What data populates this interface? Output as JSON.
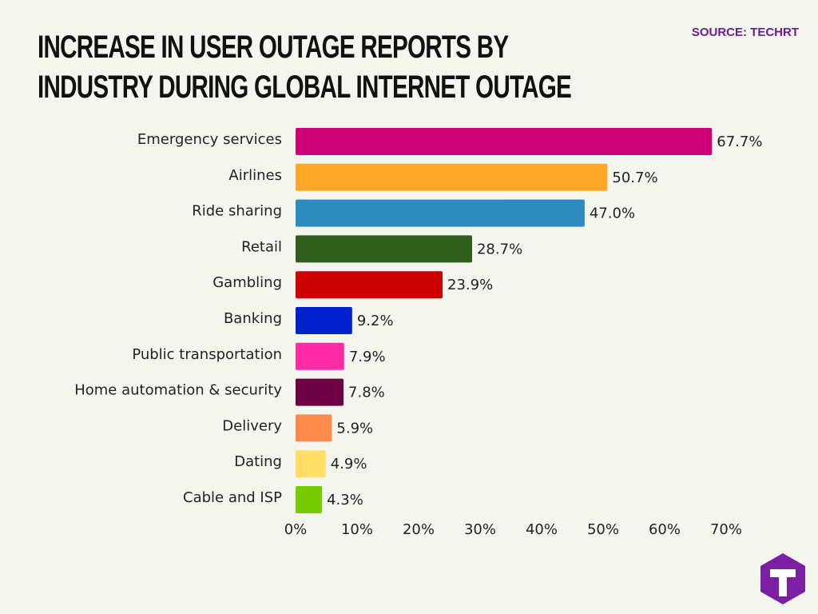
{
  "chart_data": {
    "type": "bar",
    "orientation": "horizontal",
    "title": "INCREASE IN USER OUTAGE REPORTS BY INDUSTRY DURING GLOBAL INTERNET OUTAGE",
    "source": "SOURCE: TECHRT",
    "categories": [
      "Emergency services",
      "Airlines",
      "Ride sharing",
      "Retail",
      "Gambling",
      "Banking",
      "Public transportation",
      "Home automation & security",
      "Delivery",
      "Dating",
      "Cable and ISP"
    ],
    "values": [
      67.7,
      50.7,
      47.0,
      28.7,
      23.9,
      9.2,
      7.9,
      7.8,
      5.9,
      4.9,
      4.3
    ],
    "value_labels": [
      "67.7%",
      "50.7%",
      "47.0%",
      "28.7%",
      "23.9%",
      "9.2%",
      "7.9%",
      "7.8%",
      "5.9%",
      "4.9%",
      "4.3%"
    ],
    "colors": [
      "#cc0077",
      "#ffa726",
      "#2e8bc0",
      "#2e5e1a",
      "#cc0000",
      "#0022cc",
      "#ff2aa8",
      "#6e0044",
      "#ff8a4c",
      "#ffdd66",
      "#77cc00"
    ],
    "xlim": [
      0,
      70
    ],
    "xticks": [
      {
        "value": 0,
        "label": "0%"
      },
      {
        "value": 10,
        "label": "10%"
      },
      {
        "value": 20,
        "label": "20%"
      },
      {
        "value": 30,
        "label": "30%"
      },
      {
        "value": 40,
        "label": "40%"
      },
      {
        "value": 50,
        "label": "50%"
      },
      {
        "value": 60,
        "label": "60%"
      },
      {
        "value": 70,
        "label": "70%"
      }
    ],
    "grid": false
  }
}
